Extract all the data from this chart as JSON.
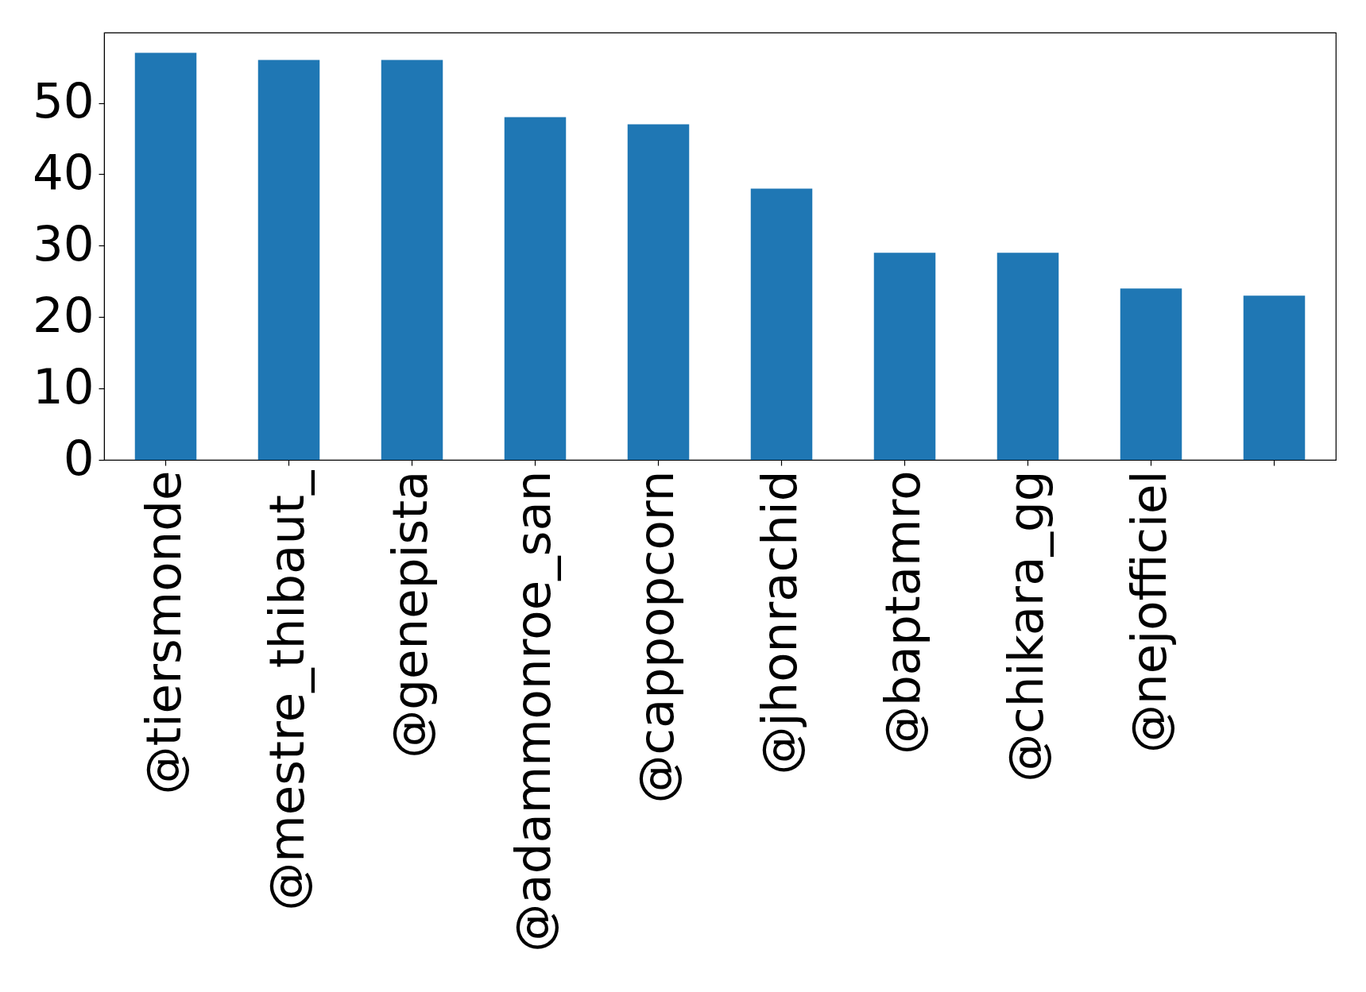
{
  "chart_data": {
    "type": "bar",
    "categories": [
      "@tiersmonde",
      "@mestre_thibaut_",
      "@genepista",
      "@adammonroe_san",
      "@cappopcorn",
      "@jhonrachid",
      "@baptamro",
      "@chikara_gg",
      "@nejofficiel",
      null
    ],
    "values": [
      57,
      56,
      56,
      48,
      47,
      38,
      29,
      29,
      24,
      23
    ],
    "color": "#1f77b4",
    "ylim": [
      0,
      59.85
    ],
    "yticks": [
      0,
      10,
      20,
      30,
      40,
      50
    ]
  }
}
